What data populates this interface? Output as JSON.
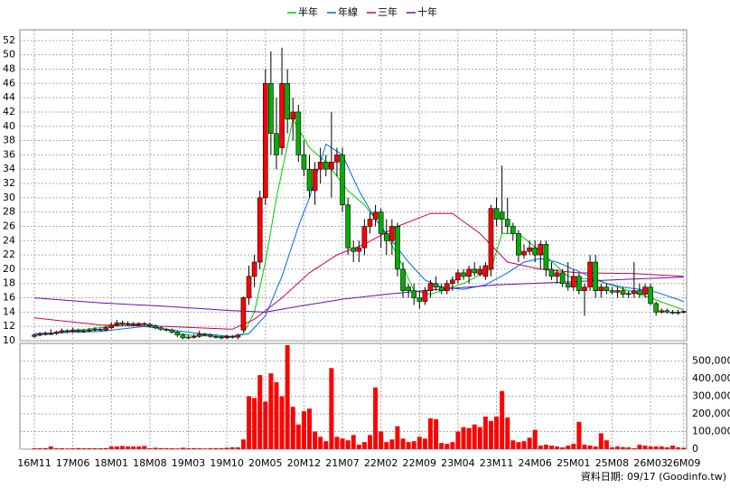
{
  "chart_data": {
    "type": "candlestick",
    "categories": [
      "16M11",
      null,
      null,
      null,
      null,
      null,
      null,
      "17M06",
      null,
      null,
      null,
      null,
      null,
      null,
      "18M01",
      null,
      null,
      null,
      null,
      null,
      null,
      "18M08",
      null,
      null,
      null,
      null,
      null,
      null,
      "19M03",
      null,
      null,
      null,
      null,
      null,
      null,
      "19M10",
      null,
      null,
      null,
      null,
      null,
      null,
      "20M05",
      null,
      null,
      null,
      null,
      null,
      null,
      "20M12",
      null,
      null,
      null,
      null,
      null,
      null,
      "21M07",
      null,
      null,
      null,
      null,
      null,
      null,
      "22M02",
      null,
      null,
      null,
      null,
      null,
      null,
      "22M09",
      null,
      null,
      null,
      null,
      null,
      null,
      "23M04",
      null,
      null,
      null,
      null,
      null,
      null,
      "23M11",
      null,
      null,
      null,
      null,
      null,
      null,
      "24M06",
      null,
      null,
      null,
      null,
      null,
      null,
      "25M01",
      null,
      null,
      null,
      null,
      null,
      null,
      "25M08",
      null,
      null,
      null,
      null,
      null,
      null,
      "26M03",
      null,
      null,
      null,
      null,
      null,
      "26M09"
    ],
    "candles": [
      [
        10.6,
        11.0,
        10.4,
        10.8
      ],
      [
        10.8,
        11.2,
        10.6,
        10.9
      ],
      [
        10.9,
        11.3,
        10.7,
        11.0
      ],
      [
        11.0,
        11.6,
        10.8,
        11.0
      ],
      [
        11.0,
        11.4,
        10.8,
        11.2
      ],
      [
        11.2,
        11.7,
        11.0,
        11.4
      ],
      [
        11.4,
        11.6,
        11.1,
        11.3
      ],
      [
        11.3,
        11.8,
        11.1,
        11.5
      ],
      [
        11.5,
        11.7,
        11.1,
        11.3
      ],
      [
        11.3,
        11.6,
        11.1,
        11.4
      ],
      [
        11.4,
        11.8,
        11.2,
        11.5
      ],
      [
        11.5,
        11.9,
        11.3,
        11.6
      ],
      [
        11.6,
        11.8,
        11.3,
        11.5
      ],
      [
        11.5,
        12.1,
        11.3,
        11.8
      ],
      [
        11.8,
        12.6,
        11.6,
        12.2
      ],
      [
        12.2,
        12.9,
        12.0,
        12.5
      ],
      [
        12.5,
        12.8,
        12.1,
        12.3
      ],
      [
        12.3,
        12.7,
        12.1,
        12.4
      ],
      [
        12.4,
        12.6,
        12.0,
        12.2
      ],
      [
        12.2,
        12.6,
        12.0,
        12.4
      ],
      [
        12.4,
        12.6,
        12.1,
        12.3
      ],
      [
        12.3,
        12.5,
        11.9,
        12.1
      ],
      [
        12.1,
        12.3,
        11.6,
        11.8
      ],
      [
        11.8,
        12.0,
        11.4,
        11.6
      ],
      [
        11.6,
        11.8,
        11.3,
        11.5
      ],
      [
        11.5,
        11.7,
        11.0,
        11.2
      ],
      [
        11.2,
        11.4,
        10.5,
        10.8
      ],
      [
        10.8,
        11.0,
        10.2,
        10.4
      ],
      [
        10.4,
        10.8,
        10.2,
        10.5
      ],
      [
        10.5,
        10.9,
        10.3,
        10.6
      ],
      [
        10.6,
        11.4,
        10.4,
        10.9
      ],
      [
        10.9,
        11.1,
        10.6,
        10.8
      ],
      [
        10.8,
        11.0,
        10.4,
        10.6
      ],
      [
        10.6,
        10.8,
        10.3,
        10.5
      ],
      [
        10.5,
        10.7,
        10.2,
        10.4
      ],
      [
        10.4,
        10.8,
        10.2,
        10.6
      ],
      [
        10.6,
        10.8,
        10.3,
        10.5
      ],
      [
        10.5,
        11.0,
        10.2,
        10.8
      ],
      [
        11.5,
        16.2,
        11.2,
        16.0
      ],
      [
        16,
        20.5,
        15,
        19
      ],
      [
        19,
        22,
        17.5,
        21
      ],
      [
        21,
        31,
        20,
        30
      ],
      [
        30,
        48,
        29,
        46
      ],
      [
        46,
        50.5,
        36,
        39
      ],
      [
        39,
        44,
        34,
        36
      ],
      [
        37,
        51,
        36,
        46
      ],
      [
        46,
        48,
        39,
        41
      ],
      [
        41,
        44,
        38,
        42
      ],
      [
        42,
        43,
        35,
        36
      ],
      [
        36,
        38,
        33,
        34
      ],
      [
        34,
        36,
        30,
        31
      ],
      [
        31,
        35,
        29,
        34
      ],
      [
        34,
        37,
        32,
        35
      ],
      [
        35,
        36,
        33,
        34
      ],
      [
        34,
        42,
        30,
        35
      ],
      [
        35,
        37,
        33,
        36
      ],
      [
        36,
        37,
        28,
        29
      ],
      [
        29,
        30,
        22,
        23
      ],
      [
        23,
        24,
        21,
        22.5
      ],
      [
        22.5,
        24,
        21,
        23
      ],
      [
        23,
        27,
        22,
        26
      ],
      [
        26,
        28,
        25,
        27
      ],
      [
        27,
        29,
        26,
        28
      ],
      [
        28,
        28.5,
        23,
        25
      ],
      [
        25,
        27,
        22,
        24
      ],
      [
        24,
        27,
        22,
        26
      ],
      [
        26,
        26.5,
        19,
        20
      ],
      [
        20,
        21,
        16,
        17
      ],
      [
        17.5,
        18,
        16,
        17
      ],
      [
        17,
        18,
        15,
        16
      ],
      [
        16,
        17,
        14.5,
        15.5
      ],
      [
        15.5,
        17.5,
        15,
        17
      ],
      [
        17,
        18.5,
        16,
        18
      ],
      [
        18,
        19,
        17,
        17.5
      ],
      [
        17.5,
        18,
        16.5,
        17
      ],
      [
        17,
        18.5,
        16.5,
        18
      ],
      [
        18,
        19,
        17,
        18.5
      ],
      [
        18.5,
        20,
        18,
        19.5
      ],
      [
        19.5,
        20,
        18.5,
        19
      ],
      [
        19,
        20.5,
        18,
        20
      ],
      [
        20,
        21,
        19,
        19.5
      ],
      [
        19.3,
        20.5,
        19,
        20
      ],
      [
        19,
        21,
        18.5,
        20.5
      ],
      [
        20,
        29,
        19,
        28.5
      ],
      [
        28.5,
        30,
        26,
        27
      ],
      [
        28,
        34.5,
        25,
        27
      ],
      [
        27,
        30,
        25,
        26
      ],
      [
        26,
        26.5,
        24,
        25
      ],
      [
        25,
        25.5,
        21,
        22
      ],
      [
        22,
        23.5,
        21.5,
        22.5
      ],
      [
        22.5,
        24,
        22,
        23
      ],
      [
        23,
        24,
        21,
        22
      ],
      [
        22,
        24,
        20,
        23.5
      ],
      [
        23.5,
        24,
        19,
        20
      ],
      [
        20,
        21,
        18.5,
        19
      ],
      [
        19,
        20,
        18,
        19.5
      ],
      [
        19.5,
        20,
        17.5,
        18
      ],
      [
        18,
        21,
        17,
        17.5
      ],
      [
        17.5,
        20,
        17,
        19
      ],
      [
        19,
        19.5,
        16.5,
        17
      ],
      [
        17,
        18,
        13.5,
        17.5
      ],
      [
        17.5,
        22,
        17,
        21
      ],
      [
        21,
        22,
        16,
        17
      ],
      [
        17,
        18,
        16,
        17.5
      ],
      [
        17.5,
        18,
        16.5,
        17
      ],
      [
        17,
        17.5,
        16.5,
        16.8
      ],
      [
        16.8,
        17.5,
        16,
        17
      ],
      [
        17,
        17.5,
        16,
        16.5
      ],
      [
        16.5,
        17,
        16,
        16.6
      ],
      [
        16.6,
        21,
        16,
        17
      ],
      [
        17,
        18,
        16,
        16.5
      ],
      [
        16.5,
        18,
        16,
        17.5
      ],
      [
        17.5,
        18,
        15,
        15.2
      ],
      [
        15.2,
        15.5,
        13.5,
        14
      ],
      [
        14,
        14.5,
        13.8,
        14.2
      ],
      [
        14.2,
        14.5,
        13.8,
        14
      ],
      [
        14,
        14.3,
        13.7,
        13.9
      ],
      [
        13.9,
        14.3,
        13.6,
        14
      ],
      [
        14,
        14.2,
        13.8,
        14.1
      ]
    ],
    "up_color": "#ff0000",
    "down_color": "#00b000",
    "volume": [
      5000,
      5000,
      6000,
      15000,
      5000,
      5000,
      4000,
      5000,
      6000,
      5000,
      5000,
      5000,
      5000,
      6000,
      15000,
      15000,
      18000,
      15000,
      15000,
      15000,
      18000,
      5000,
      8000,
      6000,
      5000,
      5000,
      4000,
      8000,
      5000,
      6000,
      5000,
      4000,
      5000,
      6000,
      5000,
      8000,
      10000,
      10000,
      55000,
      300000,
      290000,
      420000,
      270000,
      430000,
      380000,
      300000,
      590000,
      240000,
      140000,
      215000,
      230000,
      100000,
      70000,
      45000,
      460000,
      70000,
      60000,
      50000,
      80000,
      25000,
      40000,
      80000,
      350000,
      100000,
      40000,
      55000,
      130000,
      60000,
      40000,
      45000,
      70000,
      60000,
      175000,
      170000,
      35000,
      30000,
      40000,
      100000,
      125000,
      120000,
      140000,
      125000,
      185000,
      160000,
      185000,
      330000,
      180000,
      50000,
      40000,
      45000,
      65000,
      110000,
      20000,
      25000,
      20000,
      15000,
      10000,
      20000,
      30000,
      155000,
      25000,
      20000,
      15000,
      90000,
      50000,
      10000,
      15000,
      12000,
      10000,
      5000,
      25000,
      20000,
      15000,
      15000,
      15000,
      10000,
      20000,
      10000,
      8000
    ],
    "volume_color": "#ff0000",
    "ylim": [
      10,
      53.5
    ],
    "yticks": [
      10,
      12,
      14,
      16,
      18,
      20,
      22,
      24,
      26,
      28,
      30,
      32,
      34,
      36,
      38,
      40,
      42,
      44,
      46,
      48,
      50,
      52
    ],
    "y2lim": [
      0,
      600000
    ],
    "y2ticks": [
      0,
      {
        "value": 100000,
        "label": "100,000"
      },
      {
        "value": 200000,
        "label": "200,000"
      },
      {
        "value": 300000,
        "label": "300,000"
      },
      {
        "value": 400000,
        "label": "400,000"
      },
      {
        "value": 500000,
        "label": "500,000"
      }
    ],
    "grid": true,
    "series": [
      {
        "name": "半年",
        "color": "#00cc00",
        "x": [
          0,
          14,
          20,
          28,
          36,
          38,
          40,
          42,
          44,
          47,
          50,
          53,
          57,
          60,
          63,
          66,
          69,
          72,
          78,
          83,
          85,
          88,
          92,
          97,
          102,
          108,
          112,
          118
        ],
        "values": [
          10.8,
          12,
          12.3,
          10.8,
          10.5,
          11,
          14,
          21,
          30,
          41,
          37,
          35,
          31,
          29,
          26,
          22,
          17,
          16.5,
          18,
          20,
          25,
          25,
          22.5,
          19,
          18.5,
          17,
          16,
          14.3
        ]
      },
      {
        "name": "年線",
        "color": "#0066ff",
        "x": [
          0,
          12,
          20,
          30,
          36,
          39,
          42,
          45,
          48,
          50,
          53,
          56,
          59,
          62,
          65,
          68,
          71,
          74,
          78,
          82,
          86,
          89,
          92,
          95,
          98,
          101,
          104,
          107,
          110,
          113,
          118
        ],
        "values": [
          11,
          11.3,
          12,
          11,
          10.6,
          11,
          13.5,
          19,
          26,
          30,
          37.5,
          36,
          31,
          27,
          24,
          21,
          18.5,
          17.5,
          17.2,
          17.8,
          19.5,
          21,
          21.5,
          21,
          20,
          19,
          18,
          17.5,
          17.2,
          16.8,
          15.5
        ]
      },
      {
        "name": "三年",
        "color": "#cc0055",
        "x": [
          0,
          12,
          24,
          36,
          40,
          45,
          50,
          55,
          60,
          66,
          72,
          76,
          81,
          86,
          92,
          99,
          109,
          118
        ],
        "values": [
          13.2,
          12.2,
          12,
          11.6,
          13,
          16,
          19.5,
          22,
          23.5,
          26,
          27.8,
          27.8,
          25,
          21,
          20,
          19.5,
          19.4,
          19
        ]
      },
      {
        "name": "十年",
        "color": "#6a0dad",
        "x": [
          0,
          12,
          24,
          36,
          42,
          48,
          56,
          64,
          72,
          84,
          96,
          108,
          118
        ],
        "values": [
          16,
          15.3,
          14.8,
          14.2,
          14,
          14.8,
          15.8,
          16.5,
          17.1,
          17.8,
          18.2,
          18.6,
          18.9
        ]
      }
    ],
    "source": "資料日期: 09/17 (Goodinfo.tw)"
  }
}
